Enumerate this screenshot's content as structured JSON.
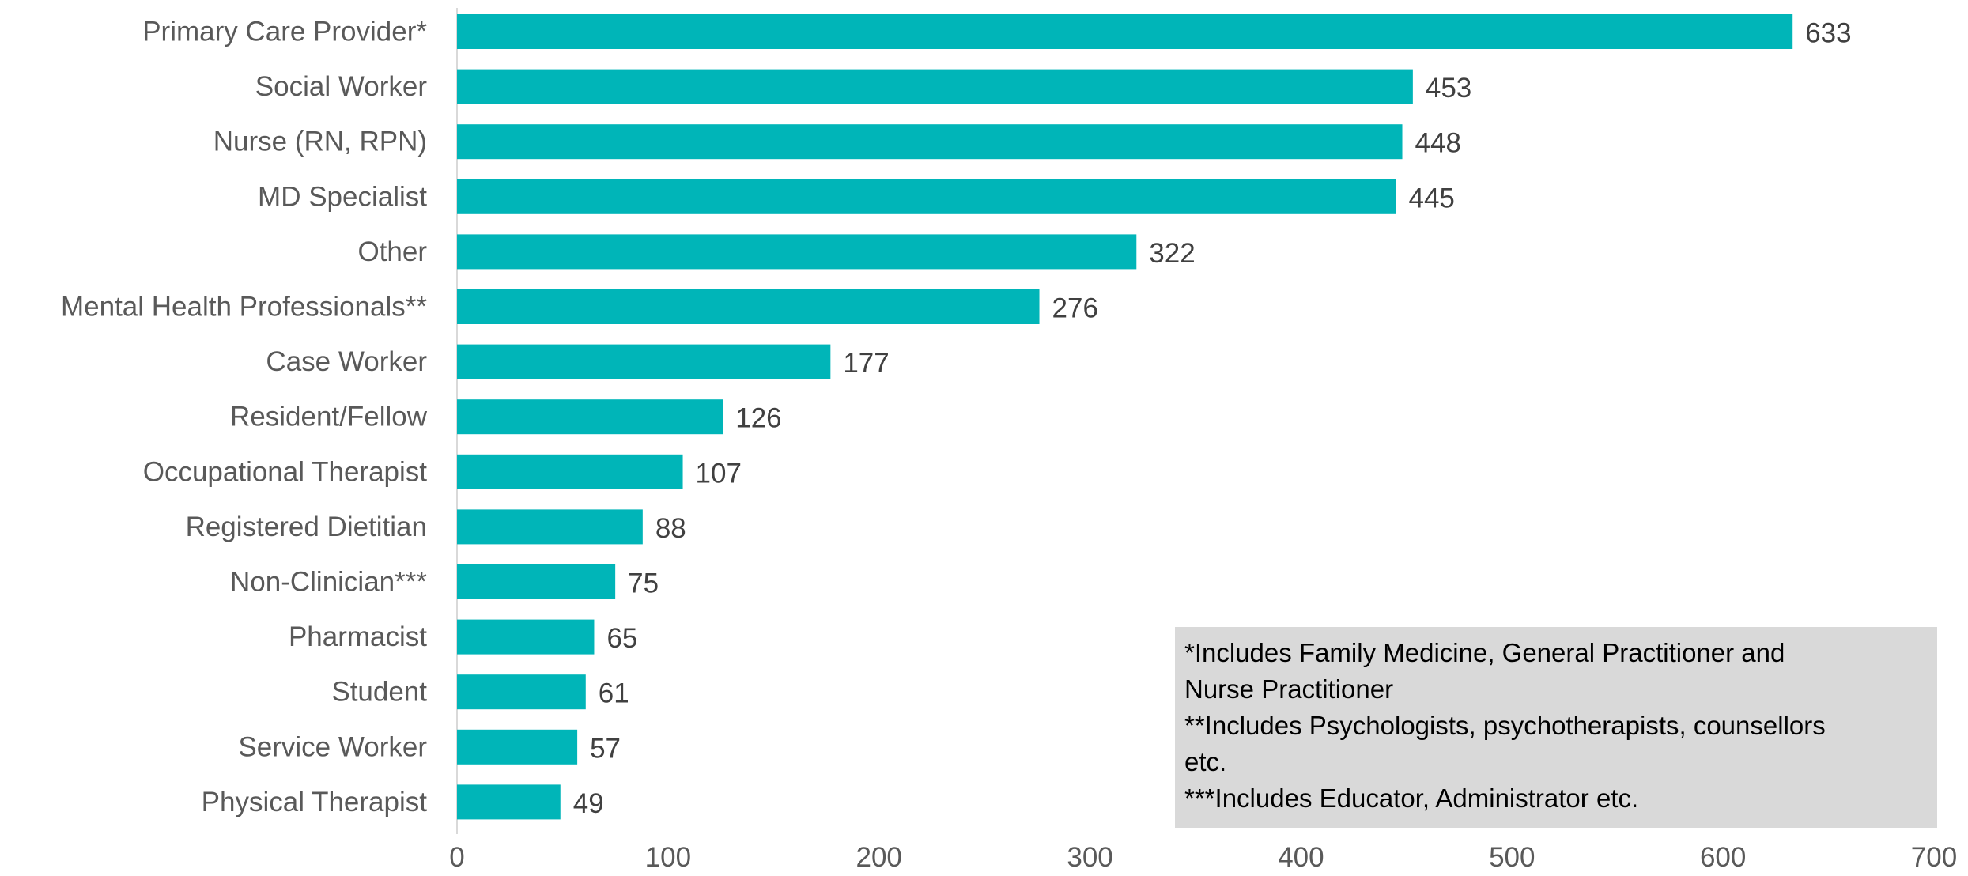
{
  "chart_data": {
    "type": "bar",
    "orientation": "horizontal",
    "categories": [
      "Primary Care Provider*",
      "Social Worker",
      "Nurse (RN, RPN)",
      "MD Specialist",
      "Other",
      "Mental Health Professionals**",
      "Case Worker",
      "Resident/Fellow",
      "Occupational Therapist",
      "Registered Dietitian",
      "Non-Clinician***",
      "Pharmacist",
      "Student",
      "Service Worker",
      "Physical Therapist"
    ],
    "values": [
      633,
      453,
      448,
      445,
      322,
      276,
      177,
      126,
      107,
      88,
      75,
      65,
      61,
      57,
      49
    ],
    "xlim": [
      0,
      700
    ],
    "xticks": [
      0,
      100,
      200,
      300,
      400,
      500,
      600,
      700
    ],
    "grid": false,
    "data_labels": true,
    "bar_color": "#00b5b8"
  },
  "footnote": {
    "lines": [
      "*Includes Family Medicine, General Practitioner and",
      "Nurse Practitioner",
      "**Includes Psychologists, psychotherapists, counsellors",
      "etc.",
      "***Includes Educator, Administrator etc."
    ]
  }
}
